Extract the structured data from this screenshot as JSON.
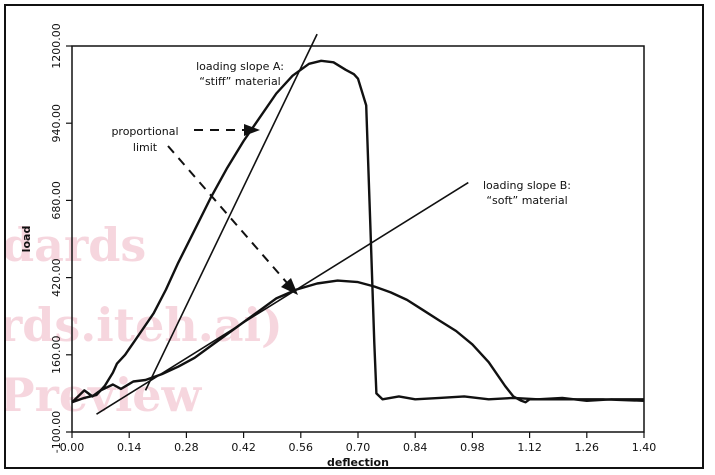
{
  "chart_data": {
    "type": "line",
    "title": "",
    "xlabel": "deflection",
    "ylabel": "load",
    "xlim": [
      0.0,
      1.4
    ],
    "ylim": [
      -100.0,
      1200.0
    ],
    "x_ticks": [
      "0.00",
      "0.14",
      "0.28",
      "0.42",
      "0.56",
      "0.70",
      "0.84",
      "0.98",
      "1.12",
      "1.26",
      "1.40"
    ],
    "y_ticks": [
      "-100.00",
      "160.00",
      "420.00",
      "680.00",
      "940.00",
      "1200.00"
    ],
    "grid": false,
    "series": [
      {
        "id": "curve-a",
        "x": [
          0.0,
          0.03,
          0.06,
          0.08,
          0.1,
          0.11,
          0.13,
          0.15,
          0.17,
          0.2,
          0.23,
          0.26,
          0.3,
          0.34,
          0.38,
          0.42,
          0.46,
          0.5,
          0.54,
          0.58,
          0.61,
          0.64,
          0.67,
          0.69,
          0.7,
          0.72,
          0.73,
          0.74,
          0.745,
          0.76,
          0.8,
          0.84,
          0.9,
          0.96,
          1.02,
          1.08,
          1.14,
          1.2,
          1.26,
          1.32,
          1.4
        ],
        "y": [
          0,
          15,
          25,
          55,
          100,
          130,
          160,
          200,
          240,
          300,
          380,
          470,
          580,
          690,
          790,
          880,
          960,
          1040,
          1100,
          1140,
          1150,
          1145,
          1120,
          1105,
          1090,
          1000,
          600,
          200,
          30,
          10,
          20,
          10,
          15,
          20,
          10,
          15,
          10,
          15,
          5,
          10,
          10
        ]
      },
      {
        "id": "curve-b",
        "x": [
          0.0,
          0.03,
          0.05,
          0.07,
          0.1,
          0.12,
          0.15,
          0.18,
          0.22,
          0.26,
          0.3,
          0.34,
          0.38,
          0.42,
          0.46,
          0.5,
          0.55,
          0.6,
          0.65,
          0.7,
          0.74,
          0.78,
          0.82,
          0.86,
          0.9,
          0.94,
          0.98,
          1.02,
          1.06,
          1.08,
          1.1,
          1.11,
          1.12,
          1.2,
          1.3,
          1.4
        ],
        "y": [
          0,
          40,
          20,
          40,
          60,
          45,
          70,
          75,
          95,
          120,
          150,
          190,
          230,
          270,
          310,
          350,
          380,
          400,
          410,
          405,
          390,
          370,
          345,
          310,
          275,
          240,
          195,
          135,
          55,
          20,
          5,
          0,
          10,
          10,
          10,
          5
        ]
      },
      {
        "id": "slope-a",
        "x": [
          0.18,
          0.6
        ],
        "y": [
          40,
          1240
        ]
      },
      {
        "id": "slope-b",
        "x": [
          0.06,
          0.97
        ],
        "y": [
          -40,
          740
        ]
      }
    ],
    "annotations": {
      "slope_a_line1": "loading slope A:",
      "slope_a_line2": "“stiff” material",
      "slope_b_line1": "loading slope B:",
      "slope_b_line2": "“soft” material",
      "prop_line1": "proportional",
      "prop_line2": "limit"
    },
    "watermark": [
      "dards",
      "rds.iteh.ai)",
      "Preview"
    ]
  }
}
